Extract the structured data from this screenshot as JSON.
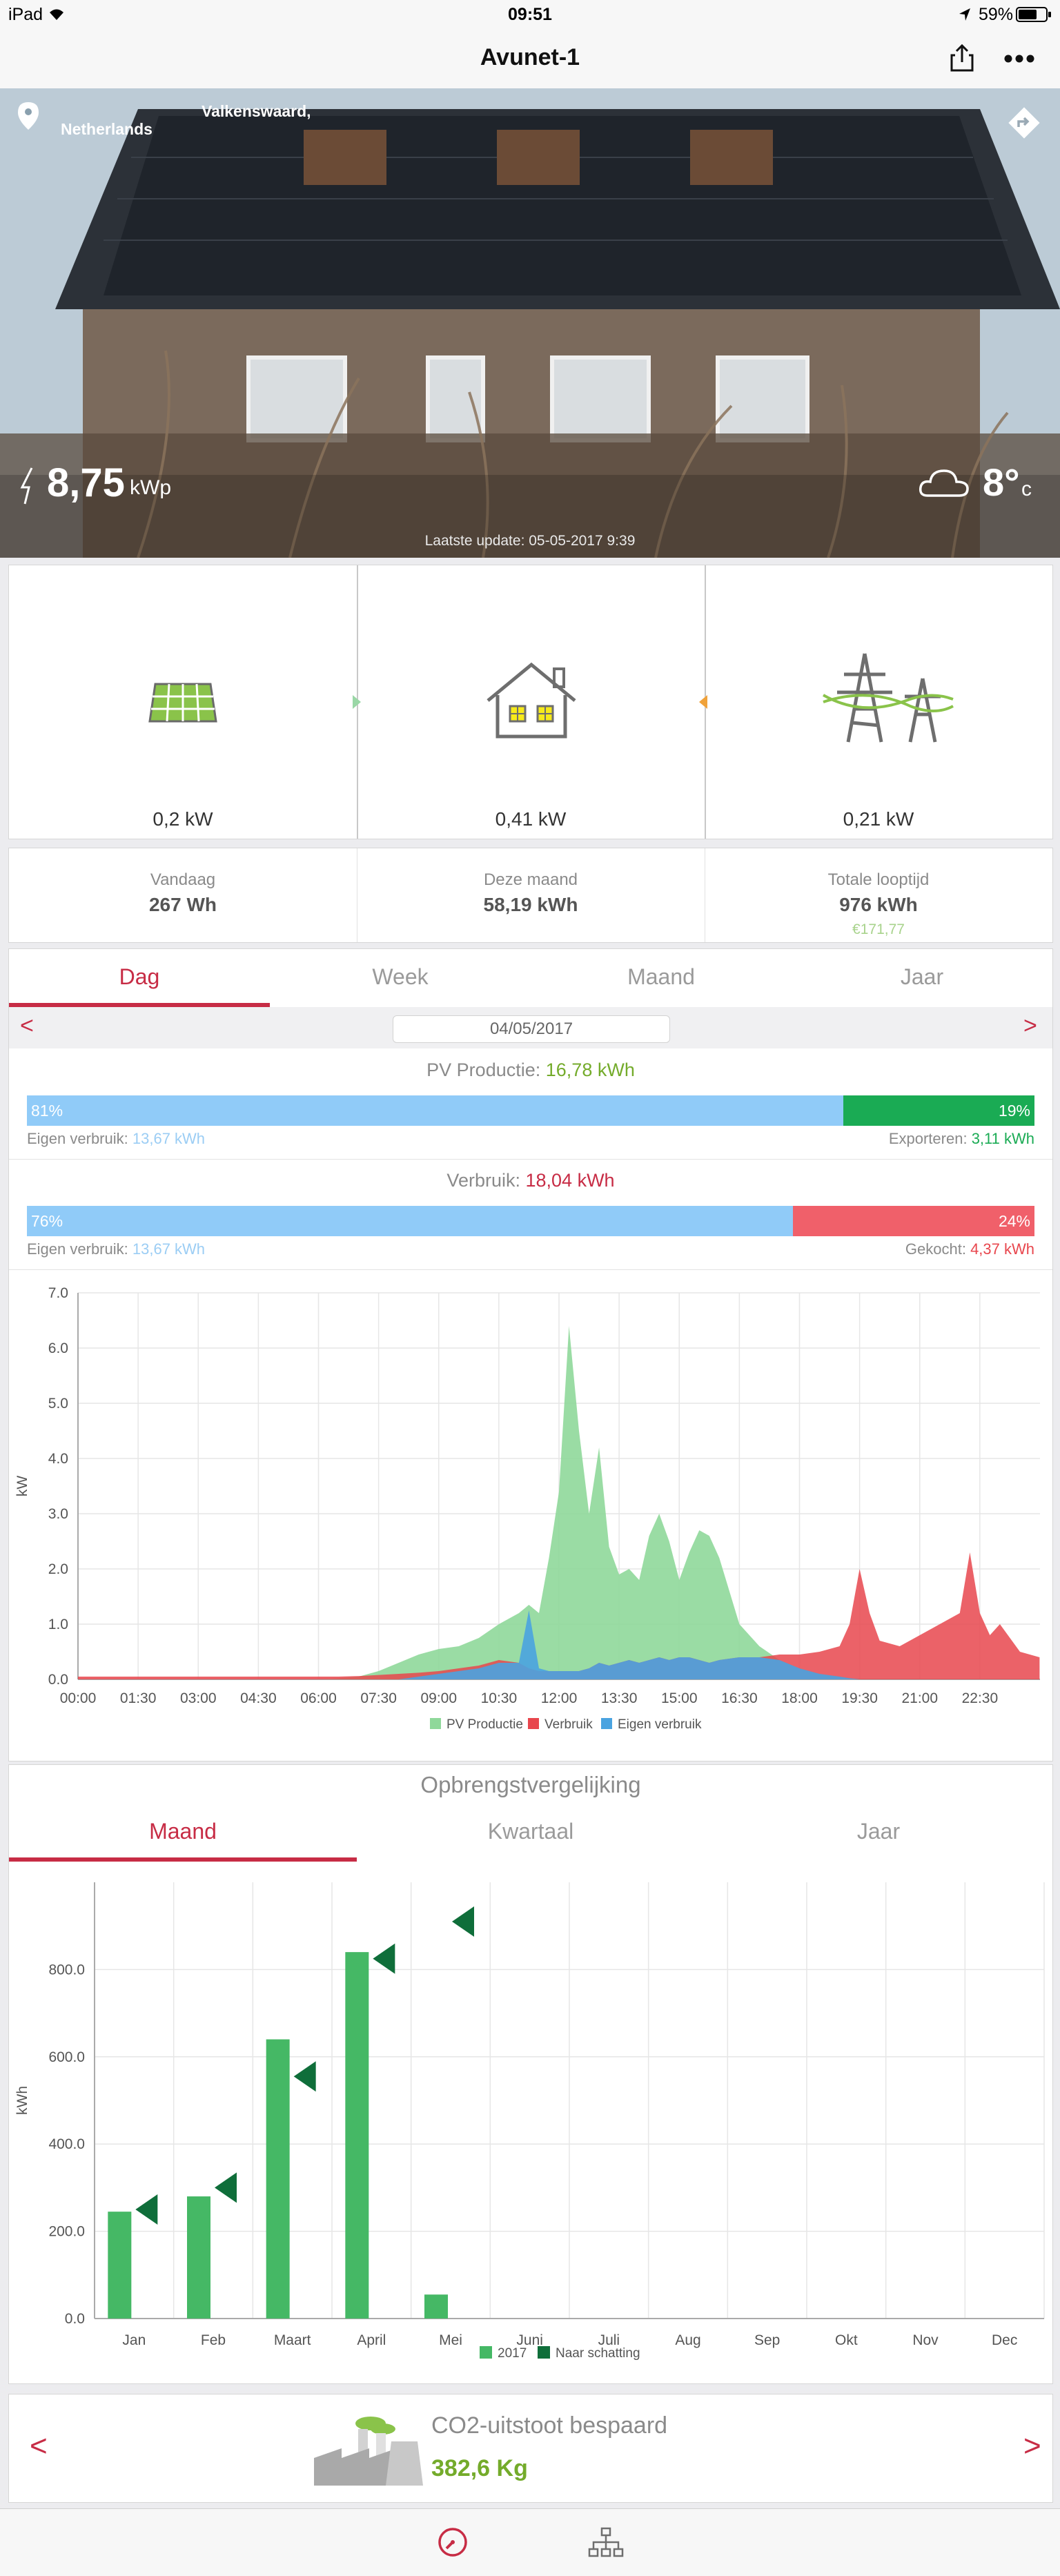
{
  "status_bar": {
    "device": "iPad",
    "time": "09:51",
    "battery": "59%"
  },
  "nav": {
    "title": "Avunet-1"
  },
  "hero": {
    "location_city": "Valkenswaard,",
    "location_country": "Netherlands",
    "peak_power_value": "8,75",
    "peak_power_unit": "kWp",
    "temperature": "8°",
    "temperature_unit": "c",
    "last_update": "Laatste update: 05-05-2017 9:39"
  },
  "flow": {
    "solar_value": "0,2 kW",
    "home_value": "0,41 kW",
    "grid_value": "0,21 kW"
  },
  "stats": {
    "today_label": "Vandaag",
    "today_value": "267 Wh",
    "month_label": "Deze maand",
    "month_value": "58,19 kWh",
    "total_label": "Totale looptijd",
    "total_value": "976 kWh",
    "total_money": "€171,77"
  },
  "period_tabs": [
    "Dag",
    "Week",
    "Maand",
    "Jaar"
  ],
  "date_selector": {
    "date": "04/05/2017",
    "prev": "<",
    "next": ">"
  },
  "pv_production": {
    "label": "PV Productie:",
    "value": "16,78 kWh",
    "self_use_pct": 81,
    "export_pct": 19,
    "self_use_pct_label": "81%",
    "export_pct_label": "19%",
    "self_use_text": "Eigen verbruik:",
    "self_use_value": "13,67 kWh",
    "export_text": "Exporteren:",
    "export_value": "3,11 kWh"
  },
  "consumption": {
    "label": "Verbruik:",
    "value": "18,04 kWh",
    "self_use_pct": 76,
    "bought_pct": 24,
    "self_use_pct_label": "76%",
    "bought_pct_label": "24%",
    "self_use_text": "Eigen verbruik:",
    "self_use_value": "13,67 kWh",
    "bought_text": "Gekocht:",
    "bought_value": "4,37 kWh"
  },
  "comparison": {
    "title": "Opbrengstvergelijking",
    "tabs": [
      "Maand",
      "Kwartaal",
      "Jaar"
    ]
  },
  "co2": {
    "title": "CO2-uitstoot bespaard",
    "value": "382,6 Kg",
    "prev": "<",
    "next": ">"
  },
  "colors": {
    "accent": "#c72c45",
    "pv": "#8fd89a",
    "consumption": "#e8464d",
    "self_use": "#4aa3e0",
    "bar_blue": "#90cbf8",
    "bar_green": "#1aab54",
    "bar_red": "#f0606a",
    "green_text": "#74ab2b",
    "bar2017": "#45b865",
    "estimate": "#0f6e3a"
  },
  "chart_data": [
    {
      "type": "area",
      "title": "",
      "ylabel": "kW",
      "xlabel": "",
      "ylim": [
        0,
        7.0
      ],
      "yticks": [
        "0.0",
        "1.0",
        "2.0",
        "3.0",
        "4.0",
        "5.0",
        "6.0",
        "7.0"
      ],
      "xticks": [
        "00:00",
        "01:30",
        "03:00",
        "04:30",
        "06:00",
        "07:30",
        "09:00",
        "10:30",
        "12:00",
        "13:30",
        "15:00",
        "16:30",
        "18:00",
        "19:30",
        "21:00",
        "22:30"
      ],
      "x_hours": [
        0,
        6,
        6.5,
        7,
        7.5,
        8,
        8.5,
        9,
        9.5,
        10,
        10.5,
        11,
        11.25,
        11.5,
        11.75,
        12,
        12.25,
        12.5,
        12.75,
        13,
        13.25,
        13.5,
        13.75,
        14,
        14.25,
        14.5,
        14.75,
        15,
        15.25,
        15.5,
        15.75,
        16,
        16.5,
        17,
        17.5,
        18,
        18.5,
        19,
        19.25,
        19.5,
        19.75,
        20,
        20.5,
        21,
        21.5,
        22,
        22.25,
        22.5,
        22.75,
        23,
        23.5,
        23.99
      ],
      "series": [
        {
          "name": "PV Productie",
          "values": [
            0,
            0,
            0.02,
            0.05,
            0.15,
            0.3,
            0.45,
            0.55,
            0.6,
            0.75,
            1.0,
            1.2,
            1.35,
            1.2,
            2.2,
            3.4,
            6.4,
            4.5,
            3.0,
            4.2,
            2.4,
            1.9,
            2.0,
            1.8,
            2.6,
            3.0,
            2.5,
            1.8,
            2.3,
            2.7,
            2.6,
            2.2,
            1.0,
            0.6,
            0.35,
            0.2,
            0.1,
            0.05,
            0.02,
            0,
            0,
            0,
            0,
            0,
            0,
            0,
            0,
            0,
            0,
            0,
            0,
            0
          ]
        },
        {
          "name": "Verbruik",
          "values": [
            0.05,
            0.05,
            0.05,
            0.06,
            0.08,
            0.1,
            0.12,
            0.15,
            0.2,
            0.25,
            0.35,
            0.3,
            0.2,
            0.15,
            0.15,
            0.15,
            0.15,
            0.15,
            0.2,
            0.3,
            0.25,
            0.3,
            0.35,
            0.3,
            0.35,
            0.4,
            0.35,
            0.4,
            0.4,
            0.35,
            0.3,
            0.35,
            0.4,
            0.4,
            0.45,
            0.45,
            0.5,
            0.6,
            1.0,
            2.0,
            1.2,
            0.7,
            0.6,
            0.8,
            1.0,
            1.2,
            2.3,
            1.2,
            0.8,
            1.0,
            0.5,
            0.4
          ]
        },
        {
          "name": "Eigen verbruik",
          "values": [
            0,
            0,
            0,
            0,
            0,
            0,
            0.05,
            0.1,
            0.15,
            0.2,
            0.3,
            0.3,
            1.25,
            0.2,
            0.15,
            0.15,
            0.15,
            0.15,
            0.2,
            0.3,
            0.25,
            0.3,
            0.35,
            0.3,
            0.35,
            0.4,
            0.35,
            0.4,
            0.4,
            0.35,
            0.3,
            0.35,
            0.4,
            0.4,
            0.35,
            0.2,
            0.1,
            0.05,
            0.02,
            0,
            0,
            0,
            0,
            0,
            0,
            0,
            0,
            0,
            0,
            0,
            0,
            0
          ]
        }
      ],
      "legend": [
        "PV Productie",
        "Verbruik",
        "Eigen verbruik"
      ],
      "legend_position": "bottom",
      "grid": true
    },
    {
      "type": "bar",
      "title": "",
      "ylabel": "kWh",
      "ylim": [
        0,
        1000
      ],
      "yticks": [
        "0.0",
        "200.0",
        "400.0",
        "600.0",
        "800.0"
      ],
      "categories": [
        "Jan",
        "Feb",
        "Maart",
        "April",
        "Mei",
        "Juni",
        "Juli",
        "Aug",
        "Sep",
        "Okt",
        "Nov",
        "Dec"
      ],
      "series": [
        {
          "name": "2017",
          "values": [
            245,
            280,
            640,
            840,
            55,
            null,
            null,
            null,
            null,
            null,
            null,
            null
          ]
        },
        {
          "name": "Naar schatting",
          "values": [
            250,
            300,
            555,
            825,
            910,
            null,
            null,
            null,
            null,
            null,
            null,
            null
          ]
        }
      ],
      "legend": [
        "2017",
        "Naar schatting"
      ],
      "legend_position": "bottom",
      "grid": true
    }
  ]
}
